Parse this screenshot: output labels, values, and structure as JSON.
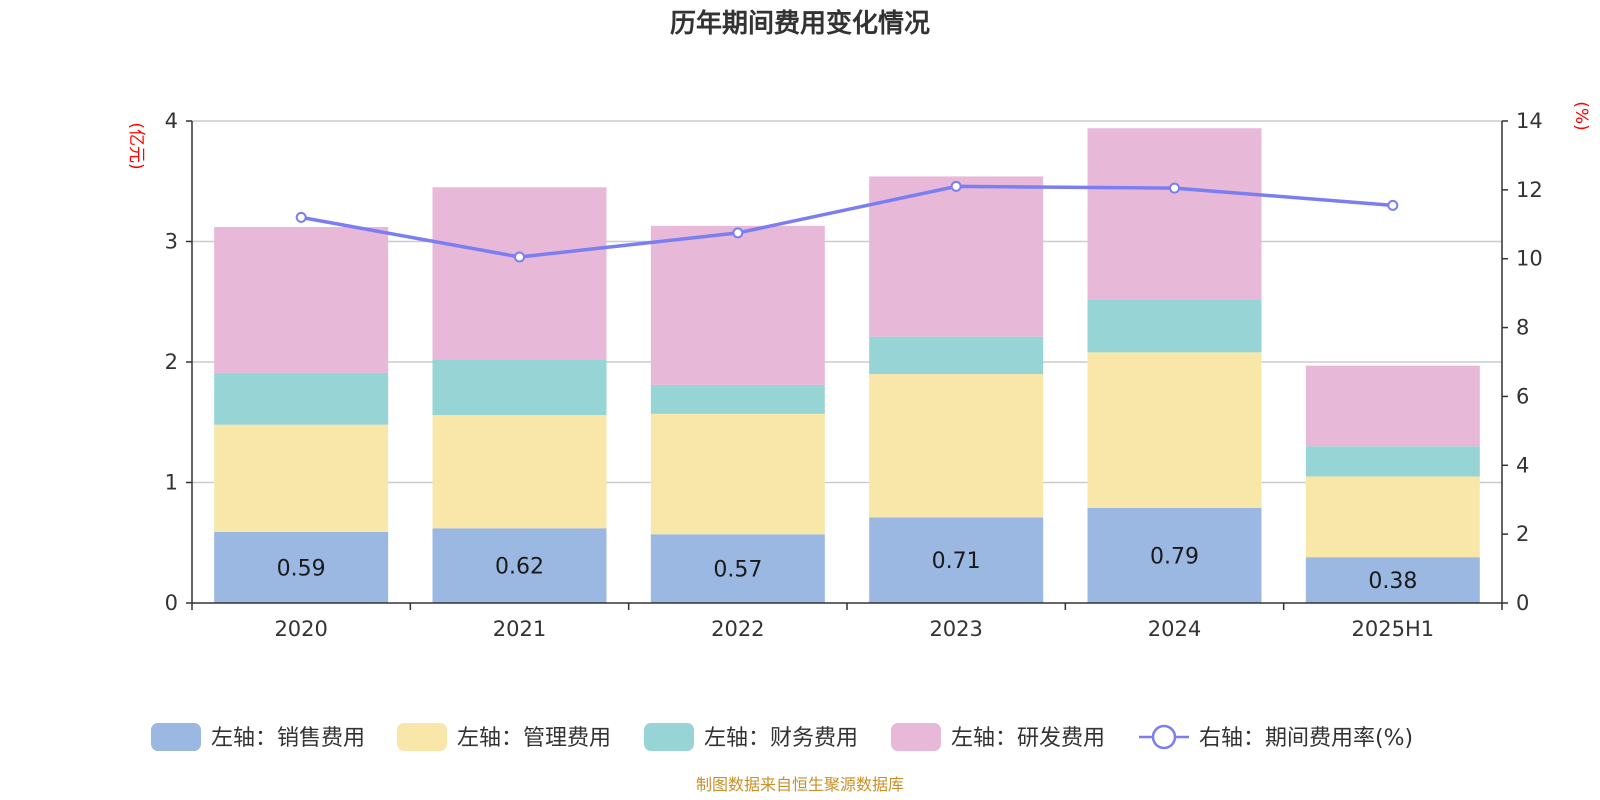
{
  "chart_data": {
    "type": "bar",
    "stacked": true,
    "title": "历年期间费用变化情况",
    "categories": [
      "2020",
      "2021",
      "2022",
      "2023",
      "2024",
      "2025H1"
    ],
    "y_left": {
      "unit": "(亿元)",
      "ylim": [
        0,
        4
      ],
      "ticks": [
        0,
        1,
        2,
        3,
        4
      ]
    },
    "y_right": {
      "unit": "(%)",
      "ylim": [
        0,
        14
      ],
      "ticks": [
        0,
        2,
        4,
        6,
        8,
        10,
        12,
        14
      ]
    },
    "series": [
      {
        "name": "左轴：销售费用",
        "axis": "left",
        "color": "#9bb8e2",
        "values": [
          0.59,
          0.62,
          0.57,
          0.71,
          0.79,
          0.38
        ],
        "show_labels": true
      },
      {
        "name": "左轴：管理费用",
        "axis": "left",
        "color": "#f8e7a8",
        "values": [
          0.89,
          0.94,
          1.0,
          1.19,
          1.29,
          0.67
        ],
        "show_labels": false
      },
      {
        "name": "左轴：财务费用",
        "axis": "left",
        "color": "#96d4d5",
        "values": [
          0.43,
          0.46,
          0.24,
          0.31,
          0.44,
          0.25
        ],
        "show_labels": false
      },
      {
        "name": "左轴：研发费用",
        "axis": "left",
        "color": "#e8b8d8",
        "values": [
          1.21,
          1.43,
          1.32,
          1.33,
          1.42,
          0.67
        ],
        "show_labels": false
      }
    ],
    "line_series": {
      "name": "右轴：期间费用率(%)",
      "axis": "right",
      "color": "#7b7ef0",
      "values": [
        11.2,
        10.05,
        10.75,
        12.1,
        12.05,
        11.55
      ]
    },
    "grid": true,
    "legend_position": "bottom"
  },
  "source_note": "制图数据来自恒生聚源数据库"
}
